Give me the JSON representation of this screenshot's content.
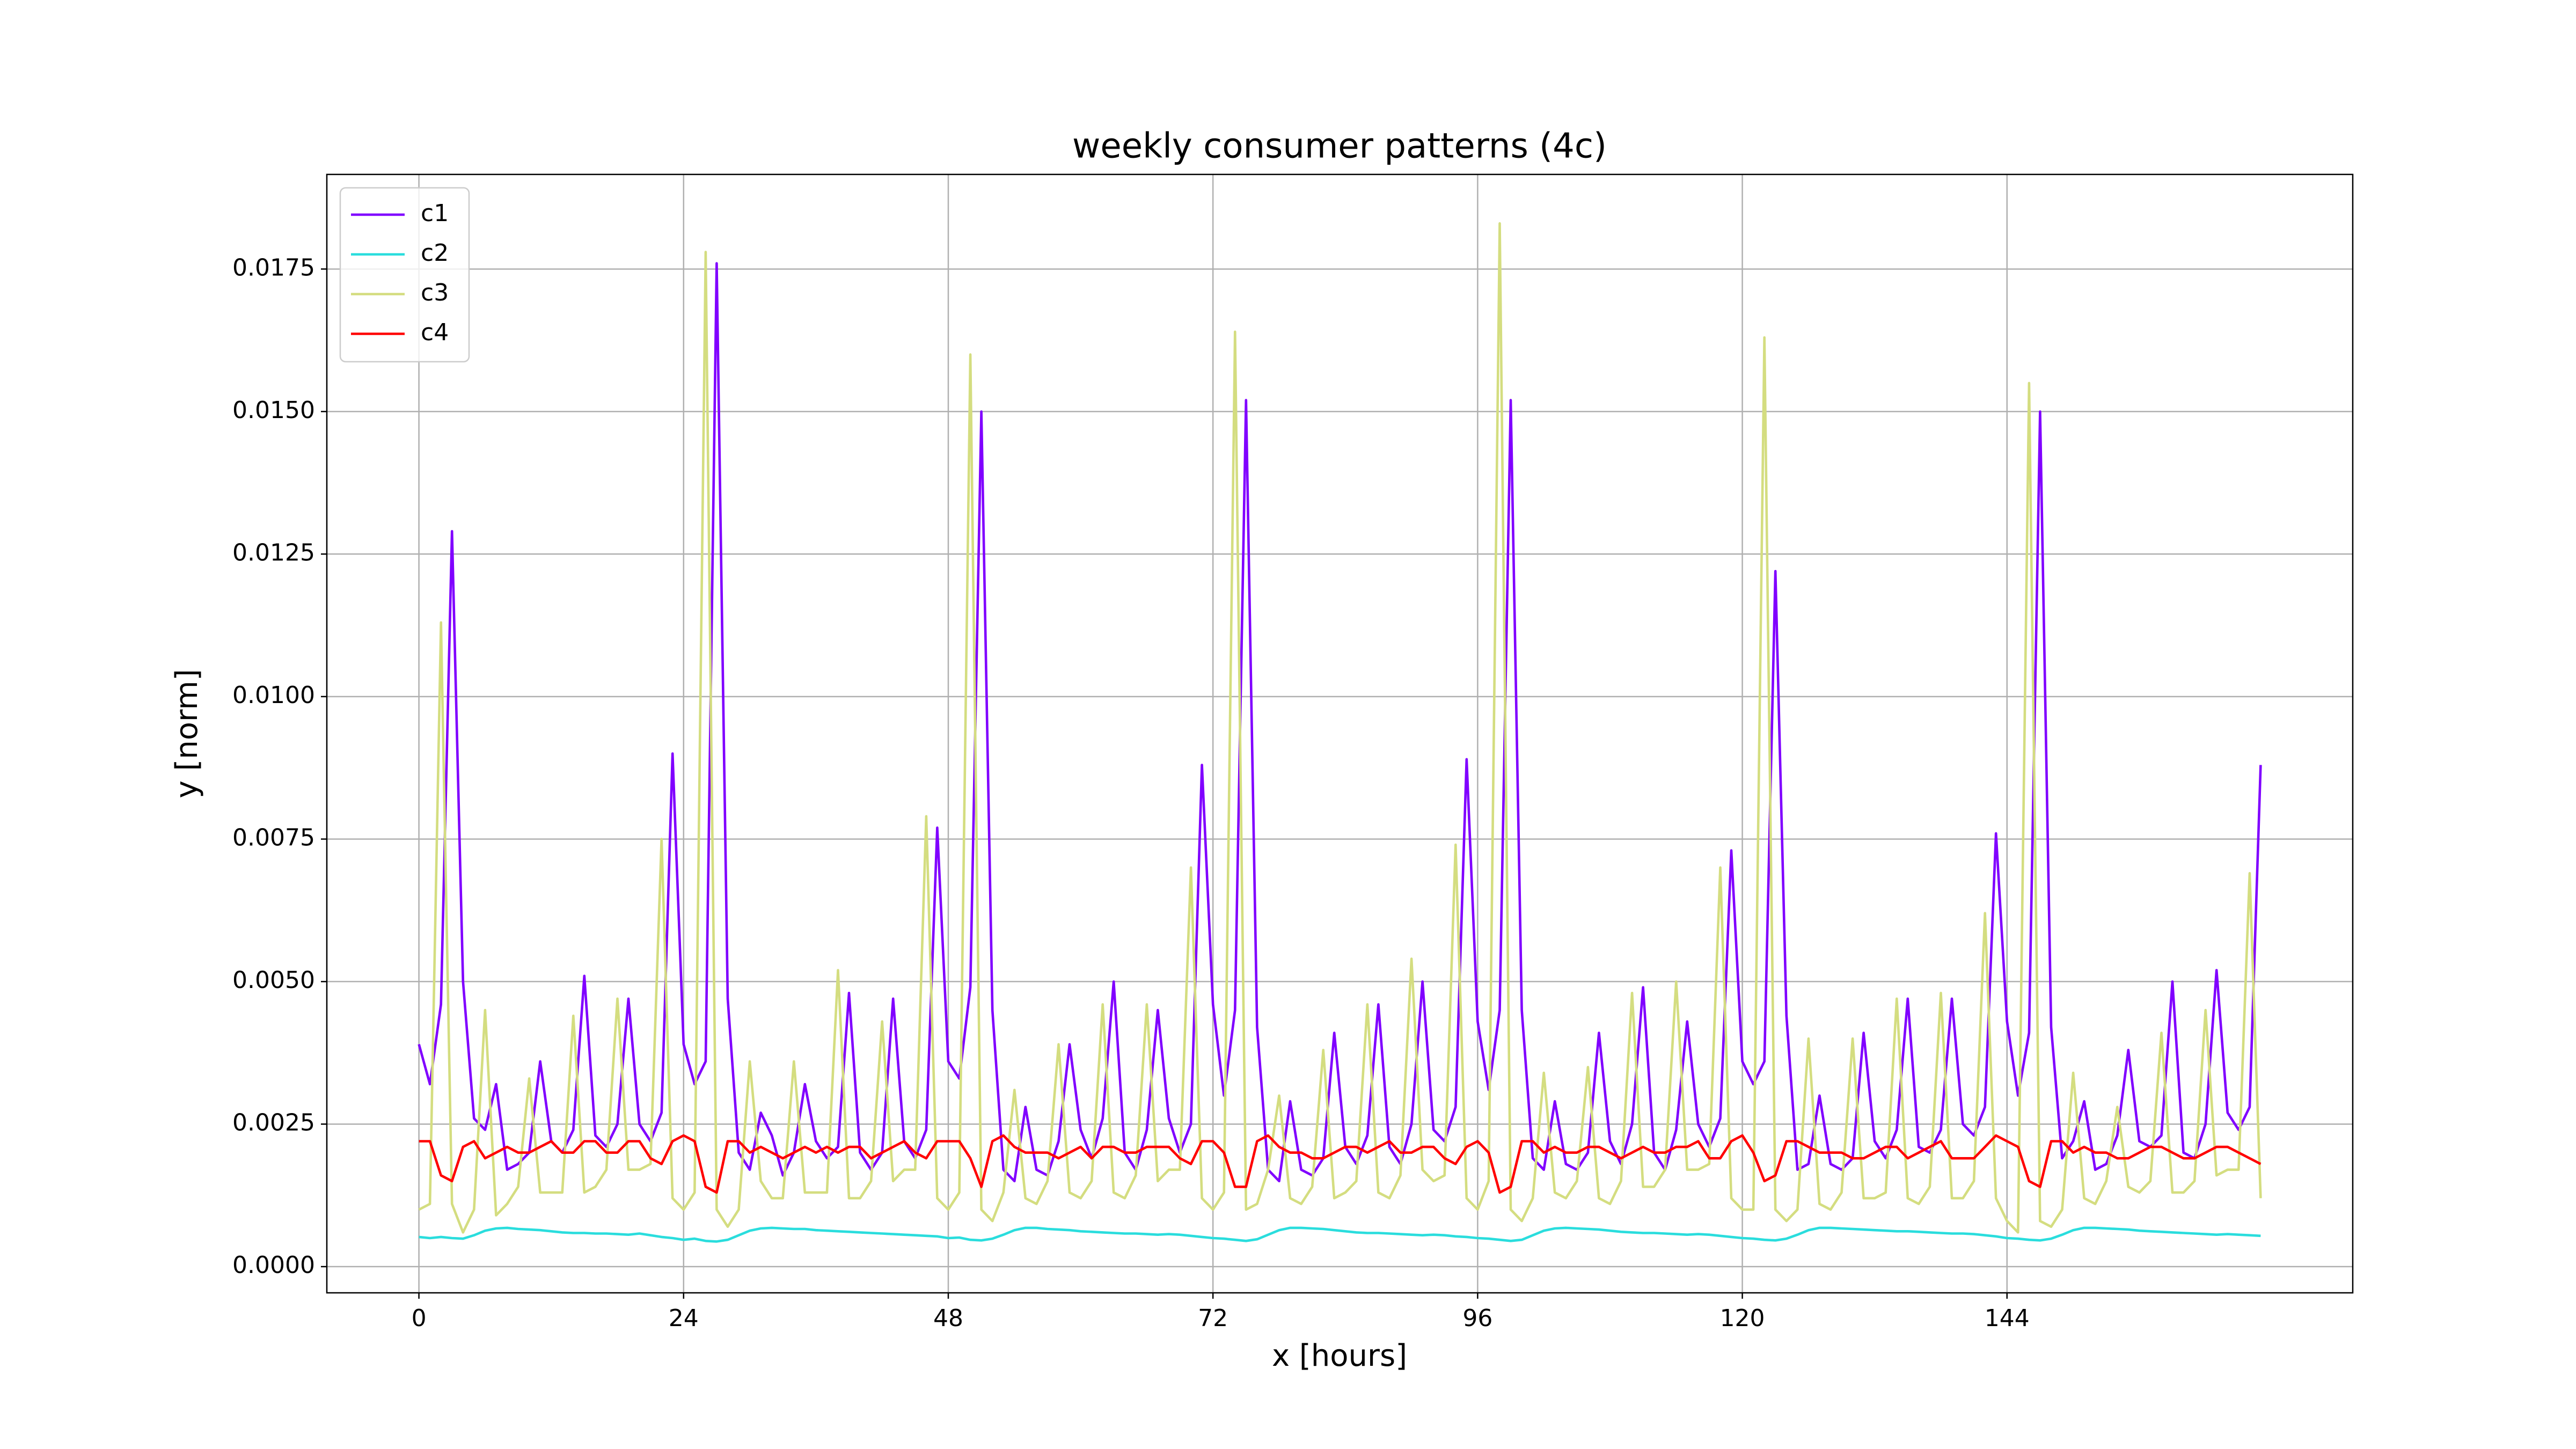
{
  "chart_data": {
    "type": "line",
    "title": "weekly consumer patterns (4c)",
    "xlabel": "x [hours]",
    "ylabel": "y [norm]",
    "x": [
      0,
      1,
      2,
      3,
      4,
      5,
      6,
      7,
      8,
      9,
      10,
      11,
      12,
      13,
      14,
      15,
      16,
      17,
      18,
      19,
      20,
      21,
      22,
      23,
      24,
      25,
      26,
      27,
      28,
      29,
      30,
      31,
      32,
      33,
      34,
      35,
      36,
      37,
      38,
      39,
      40,
      41,
      42,
      43,
      44,
      45,
      46,
      47,
      48,
      49,
      50,
      51,
      52,
      53,
      54,
      55,
      56,
      57,
      58,
      59,
      60,
      61,
      62,
      63,
      64,
      65,
      66,
      67,
      68,
      69,
      70,
      71,
      72,
      73,
      74,
      75,
      76,
      77,
      78,
      79,
      80,
      81,
      82,
      83,
      84,
      85,
      86,
      87,
      88,
      89,
      90,
      91,
      92,
      93,
      94,
      95,
      96,
      97,
      98,
      99,
      100,
      101,
      102,
      103,
      104,
      105,
      106,
      107,
      108,
      109,
      110,
      111,
      112,
      113,
      114,
      115,
      116,
      117,
      118,
      119,
      120,
      121,
      122,
      123,
      124,
      125,
      126,
      127,
      128,
      129,
      130,
      131,
      132,
      133,
      134,
      135,
      136,
      137,
      138,
      139,
      140,
      141,
      142,
      143,
      144,
      145,
      146,
      147,
      148,
      149,
      150,
      151,
      152,
      153,
      154,
      155,
      156,
      157,
      158,
      159,
      160,
      161,
      162,
      163,
      164,
      165,
      166,
      167
    ],
    "series": [
      {
        "name": "c1",
        "color": "#8000ff",
        "values": [
          0.0039,
          0.0032,
          0.0046,
          0.0129,
          0.005,
          0.0026,
          0.0024,
          0.0032,
          0.0017,
          0.0018,
          0.002,
          0.0036,
          0.0022,
          0.002,
          0.0024,
          0.0051,
          0.0023,
          0.0021,
          0.0025,
          0.0047,
          0.0025,
          0.0022,
          0.0027,
          0.009,
          0.0039,
          0.0032,
          0.0036,
          0.0176,
          0.0047,
          0.002,
          0.0017,
          0.0027,
          0.0023,
          0.0016,
          0.002,
          0.0032,
          0.0022,
          0.0019,
          0.0021,
          0.0048,
          0.002,
          0.0017,
          0.002,
          0.0047,
          0.0022,
          0.0019,
          0.0024,
          0.0077,
          0.0036,
          0.0033,
          0.0049,
          0.015,
          0.0045,
          0.0017,
          0.0015,
          0.0028,
          0.0017,
          0.0016,
          0.0022,
          0.0039,
          0.0024,
          0.0019,
          0.0026,
          0.005,
          0.002,
          0.0017,
          0.0024,
          0.0045,
          0.0026,
          0.002,
          0.0025,
          0.0088,
          0.0046,
          0.003,
          0.0045,
          0.0152,
          0.0042,
          0.0017,
          0.0015,
          0.0029,
          0.0017,
          0.0016,
          0.0019,
          0.0041,
          0.0021,
          0.0018,
          0.0023,
          0.0046,
          0.0021,
          0.0018,
          0.0025,
          0.005,
          0.0024,
          0.0022,
          0.0028,
          0.0089,
          0.0043,
          0.0031,
          0.0045,
          0.0152,
          0.0045,
          0.0019,
          0.0017,
          0.0029,
          0.0018,
          0.0017,
          0.002,
          0.0041,
          0.0022,
          0.0018,
          0.0025,
          0.0049,
          0.002,
          0.0017,
          0.0024,
          0.0043,
          0.0025,
          0.0021,
          0.0026,
          0.0073,
          0.0036,
          0.0032,
          0.0036,
          0.0122,
          0.0044,
          0.0017,
          0.0018,
          0.003,
          0.0018,
          0.0017,
          0.0019,
          0.0041,
          0.0022,
          0.0019,
          0.0024,
          0.0047,
          0.0021,
          0.002,
          0.0024,
          0.0047,
          0.0025,
          0.0023,
          0.0028,
          0.0076,
          0.0043,
          0.003,
          0.0041,
          0.015,
          0.0042,
          0.0019,
          0.0022,
          0.0029,
          0.0017,
          0.0018,
          0.0023,
          0.0038,
          0.0022,
          0.0021,
          0.0023,
          0.005,
          0.002,
          0.0019,
          0.0025,
          0.0052,
          0.0027,
          0.0024,
          0.0028,
          0.0088
        ]
      },
      {
        "name": "c2",
        "color": "#2adddd",
        "values": [
          0.00052,
          0.0005,
          0.00052,
          0.0005,
          0.00049,
          0.00055,
          0.00063,
          0.00067,
          0.00068,
          0.00066,
          0.00065,
          0.00064,
          0.00062,
          0.0006,
          0.00059,
          0.00059,
          0.00058,
          0.00058,
          0.00057,
          0.00056,
          0.00058,
          0.00055,
          0.00052,
          0.0005,
          0.00047,
          0.00049,
          0.00045,
          0.00044,
          0.00047,
          0.00055,
          0.00063,
          0.00067,
          0.00068,
          0.00067,
          0.00066,
          0.00066,
          0.00064,
          0.00063,
          0.00062,
          0.00061,
          0.0006,
          0.00059,
          0.00058,
          0.00057,
          0.00056,
          0.00055,
          0.00054,
          0.00053,
          0.0005,
          0.00051,
          0.00047,
          0.00046,
          0.00049,
          0.00056,
          0.00064,
          0.00068,
          0.00068,
          0.00066,
          0.00065,
          0.00064,
          0.00062,
          0.00061,
          0.0006,
          0.00059,
          0.00058,
          0.00058,
          0.00057,
          0.00056,
          0.00057,
          0.00056,
          0.00054,
          0.00052,
          0.0005,
          0.00049,
          0.00047,
          0.00045,
          0.00048,
          0.00056,
          0.00064,
          0.00068,
          0.00068,
          0.00067,
          0.00066,
          0.00064,
          0.00062,
          0.0006,
          0.00059,
          0.00059,
          0.00058,
          0.00057,
          0.00056,
          0.00055,
          0.00056,
          0.00055,
          0.00053,
          0.00052,
          0.0005,
          0.00049,
          0.00047,
          0.00045,
          0.00047,
          0.00055,
          0.00063,
          0.00067,
          0.00068,
          0.00067,
          0.00066,
          0.00065,
          0.00063,
          0.00061,
          0.0006,
          0.00059,
          0.00059,
          0.00058,
          0.00057,
          0.00056,
          0.00057,
          0.00056,
          0.00054,
          0.00052,
          0.0005,
          0.00049,
          0.00047,
          0.00046,
          0.00049,
          0.00056,
          0.00064,
          0.00068,
          0.00068,
          0.00067,
          0.00066,
          0.00065,
          0.00064,
          0.00063,
          0.00062,
          0.00062,
          0.00061,
          0.0006,
          0.00059,
          0.00058,
          0.00058,
          0.00057,
          0.00055,
          0.00053,
          0.0005,
          0.00049,
          0.00047,
          0.00046,
          0.00049,
          0.00056,
          0.00064,
          0.00068,
          0.00068,
          0.00067,
          0.00066,
          0.00065,
          0.00063,
          0.00062,
          0.00061,
          0.0006,
          0.00059,
          0.00058,
          0.00057,
          0.00056,
          0.00057,
          0.00056,
          0.00055,
          0.00054
        ]
      },
      {
        "name": "c3",
        "color": "#d4dd80",
        "values": [
          0.001,
          0.0011,
          0.0113,
          0.0011,
          0.0006,
          0.001,
          0.0045,
          0.0009,
          0.0011,
          0.0014,
          0.0033,
          0.0013,
          0.0013,
          0.0013,
          0.0044,
          0.0013,
          0.0014,
          0.0017,
          0.0047,
          0.0017,
          0.0017,
          0.0018,
          0.0075,
          0.0012,
          0.001,
          0.0013,
          0.0178,
          0.001,
          0.0007,
          0.001,
          0.0036,
          0.0015,
          0.0012,
          0.0012,
          0.0036,
          0.0013,
          0.0013,
          0.0013,
          0.0052,
          0.0012,
          0.0012,
          0.0015,
          0.0043,
          0.0015,
          0.0017,
          0.0017,
          0.0079,
          0.0012,
          0.001,
          0.0013,
          0.016,
          0.001,
          0.0008,
          0.0013,
          0.0031,
          0.0012,
          0.0011,
          0.0015,
          0.0039,
          0.0013,
          0.0012,
          0.0015,
          0.0046,
          0.0013,
          0.0012,
          0.0016,
          0.0046,
          0.0015,
          0.0017,
          0.0017,
          0.007,
          0.0012,
          0.001,
          0.0013,
          0.0164,
          0.001,
          0.0011,
          0.0017,
          0.003,
          0.0012,
          0.0011,
          0.0014,
          0.0038,
          0.0012,
          0.0013,
          0.0015,
          0.0046,
          0.0013,
          0.0012,
          0.0016,
          0.0054,
          0.0017,
          0.0015,
          0.0016,
          0.0074,
          0.0012,
          0.001,
          0.0015,
          0.0183,
          0.001,
          0.0008,
          0.0012,
          0.0034,
          0.0013,
          0.0012,
          0.0015,
          0.0035,
          0.0012,
          0.0011,
          0.0015,
          0.0048,
          0.0014,
          0.0014,
          0.0017,
          0.005,
          0.0017,
          0.0017,
          0.0018,
          0.007,
          0.0012,
          0.001,
          0.001,
          0.0163,
          0.001,
          0.0008,
          0.001,
          0.004,
          0.0011,
          0.001,
          0.0013,
          0.004,
          0.0012,
          0.0012,
          0.0013,
          0.0047,
          0.0012,
          0.0011,
          0.0014,
          0.0048,
          0.0012,
          0.0012,
          0.0015,
          0.0062,
          0.0012,
          0.0008,
          0.0006,
          0.0155,
          0.0008,
          0.0007,
          0.001,
          0.0034,
          0.0012,
          0.0011,
          0.0015,
          0.0028,
          0.0014,
          0.0013,
          0.0015,
          0.0041,
          0.0013,
          0.0013,
          0.0015,
          0.0045,
          0.0016,
          0.0017,
          0.0017,
          0.0069,
          0.0012
        ]
      },
      {
        "name": "c4",
        "color": "#ff0000",
        "values": [
          0.0022,
          0.0022,
          0.0016,
          0.0015,
          0.0021,
          0.0022,
          0.0019,
          0.002,
          0.0021,
          0.002,
          0.002,
          0.0021,
          0.0022,
          0.002,
          0.002,
          0.0022,
          0.0022,
          0.002,
          0.002,
          0.0022,
          0.0022,
          0.0019,
          0.0018,
          0.0022,
          0.0023,
          0.0022,
          0.0014,
          0.0013,
          0.0022,
          0.0022,
          0.002,
          0.0021,
          0.002,
          0.0019,
          0.002,
          0.0021,
          0.002,
          0.0021,
          0.002,
          0.0021,
          0.0021,
          0.0019,
          0.002,
          0.0021,
          0.0022,
          0.002,
          0.0019,
          0.0022,
          0.0022,
          0.0022,
          0.0019,
          0.0014,
          0.0022,
          0.0023,
          0.0021,
          0.002,
          0.002,
          0.002,
          0.0019,
          0.002,
          0.0021,
          0.0019,
          0.0021,
          0.0021,
          0.002,
          0.002,
          0.0021,
          0.0021,
          0.0021,
          0.0019,
          0.0018,
          0.0022,
          0.0022,
          0.002,
          0.0014,
          0.0014,
          0.0022,
          0.0023,
          0.0021,
          0.002,
          0.002,
          0.0019,
          0.0019,
          0.002,
          0.0021,
          0.0021,
          0.002,
          0.0021,
          0.0022,
          0.002,
          0.002,
          0.0021,
          0.0021,
          0.0019,
          0.0018,
          0.0021,
          0.0022,
          0.002,
          0.0013,
          0.0014,
          0.0022,
          0.0022,
          0.002,
          0.0021,
          0.002,
          0.002,
          0.0021,
          0.0021,
          0.002,
          0.0019,
          0.002,
          0.0021,
          0.002,
          0.002,
          0.0021,
          0.0021,
          0.0022,
          0.0019,
          0.0019,
          0.0022,
          0.0023,
          0.002,
          0.0015,
          0.0016,
          0.0022,
          0.0022,
          0.0021,
          0.002,
          0.002,
          0.002,
          0.0019,
          0.0019,
          0.002,
          0.0021,
          0.0021,
          0.0019,
          0.002,
          0.0021,
          0.0022,
          0.0019,
          0.0019,
          0.0019,
          0.0021,
          0.0023,
          0.0022,
          0.0021,
          0.0015,
          0.0014,
          0.0022,
          0.0022,
          0.002,
          0.0021,
          0.002,
          0.002,
          0.0019,
          0.0019,
          0.002,
          0.0021,
          0.0021,
          0.002,
          0.0019,
          0.0019,
          0.002,
          0.0021,
          0.0021,
          0.002,
          0.0019,
          0.0018
        ]
      }
    ],
    "xlim": [
      -8.35,
      175.35
    ],
    "ylim": [
      -0.00046,
      0.01916
    ],
    "xticks": [
      0,
      24,
      48,
      72,
      96,
      120,
      144
    ],
    "yticks": [
      {
        "value": 0,
        "label": "0.0000"
      },
      {
        "value": 0.0025,
        "label": "0.0025"
      },
      {
        "value": 0.005,
        "label": "0.0050"
      },
      {
        "value": 0.0075,
        "label": "0.0075"
      },
      {
        "value": 0.01,
        "label": "0.0100"
      },
      {
        "value": 0.0125,
        "label": "0.0125"
      },
      {
        "value": 0.015,
        "label": "0.0150"
      },
      {
        "value": 0.0175,
        "label": "0.0175"
      }
    ],
    "grid": true,
    "legend": "upper left"
  }
}
